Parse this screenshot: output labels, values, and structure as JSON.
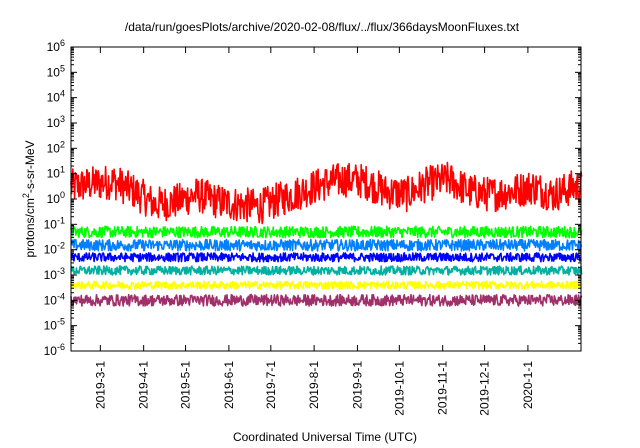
{
  "chart_data": {
    "type": "line",
    "title": "/data/run/goesPlots/archive/2020-02-08/flux/../flux/366daysMoonFluxes.txt",
    "xlabel": "Coordinated Universal Time (UTC)",
    "ylabel": {
      "base": "protons/cm",
      "sup": "2",
      "rest": "-s-sr-MeV"
    },
    "y_scale": "log",
    "ylim": [
      1e-06,
      1000000.0
    ],
    "xlim": [
      "2019-02-08",
      "2020-02-08"
    ],
    "grid": false,
    "legend": "none",
    "y_ticks": [
      {
        "base": "10",
        "exp": "-6",
        "value": 1e-06
      },
      {
        "base": "10",
        "exp": "-5",
        "value": 1e-05
      },
      {
        "base": "10",
        "exp": "-4",
        "value": 0.0001
      },
      {
        "base": "10",
        "exp": "-3",
        "value": 0.001
      },
      {
        "base": "10",
        "exp": "-2",
        "value": 0.01
      },
      {
        "base": "10",
        "exp": "-1",
        "value": 0.1
      },
      {
        "base": "10",
        "exp": "0",
        "value": 1
      },
      {
        "base": "10",
        "exp": "1",
        "value": 10
      },
      {
        "base": "10",
        "exp": "2",
        "value": 100
      },
      {
        "base": "10",
        "exp": "3",
        "value": 1000
      },
      {
        "base": "10",
        "exp": "4",
        "value": 10000
      },
      {
        "base": "10",
        "exp": "5",
        "value": 100000
      },
      {
        "base": "10",
        "exp": "6",
        "value": 1000000
      }
    ],
    "x_ticks": [
      {
        "label": "2019-3-1",
        "date": "2019-03-01"
      },
      {
        "label": "2019-4-1",
        "date": "2019-04-01"
      },
      {
        "label": "2019-5-1",
        "date": "2019-05-01"
      },
      {
        "label": "2019-6-1",
        "date": "2019-06-01"
      },
      {
        "label": "2019-7-1",
        "date": "2019-07-01"
      },
      {
        "label": "2019-8-1",
        "date": "2019-08-01"
      },
      {
        "label": "2019-9-1",
        "date": "2019-09-01"
      },
      {
        "label": "2019-10-1",
        "date": "2019-10-01"
      },
      {
        "label": "2019-11-1",
        "date": "2019-11-01"
      },
      {
        "label": "2019-12-1",
        "date": "2019-12-01"
      },
      {
        "label": "2020-1-1",
        "date": "2020-01-01"
      }
    ],
    "x": [
      "2019-02-08",
      "2019-02-23",
      "2019-03-10",
      "2019-03-25",
      "2019-04-09",
      "2019-04-24",
      "2019-05-09",
      "2019-05-24",
      "2019-06-08",
      "2019-06-23",
      "2019-07-08",
      "2019-07-23",
      "2019-08-07",
      "2019-08-22",
      "2019-09-06",
      "2019-09-21",
      "2019-10-06",
      "2019-10-21",
      "2019-11-05",
      "2019-11-20",
      "2019-12-05",
      "2019-12-20",
      "2020-01-04",
      "2020-01-19",
      "2020-02-03"
    ],
    "series": [
      {
        "color": "#ff0000",
        "values": [
          3,
          4,
          5,
          2,
          0.6,
          0.8,
          1.5,
          0.8,
          0.6,
          0.5,
          1,
          2,
          4,
          6,
          5,
          2,
          1.5,
          4,
          6,
          2,
          1.5,
          2,
          3,
          1.5,
          3
        ]
      },
      {
        "color": "#00ff00",
        "values": [
          0.05,
          0.05,
          0.05,
          0.05,
          0.05,
          0.05,
          0.05,
          0.05,
          0.05,
          0.05,
          0.05,
          0.05,
          0.05,
          0.05,
          0.05,
          0.05,
          0.05,
          0.05,
          0.05,
          0.05,
          0.05,
          0.05,
          0.05,
          0.05,
          0.05
        ]
      },
      {
        "color": "#0080ff",
        "values": [
          0.015,
          0.015,
          0.015,
          0.015,
          0.015,
          0.015,
          0.015,
          0.015,
          0.015,
          0.015,
          0.015,
          0.015,
          0.015,
          0.015,
          0.015,
          0.015,
          0.015,
          0.015,
          0.015,
          0.015,
          0.015,
          0.015,
          0.015,
          0.015,
          0.015
        ]
      },
      {
        "color": "#0000ff",
        "values": [
          0.005,
          0.005,
          0.005,
          0.005,
          0.005,
          0.005,
          0.005,
          0.005,
          0.005,
          0.005,
          0.005,
          0.005,
          0.005,
          0.005,
          0.005,
          0.005,
          0.005,
          0.005,
          0.005,
          0.005,
          0.005,
          0.005,
          0.005,
          0.005,
          0.005
        ]
      },
      {
        "color": "#00b0a0",
        "values": [
          0.0015,
          0.0015,
          0.0015,
          0.0015,
          0.0015,
          0.0015,
          0.0015,
          0.0015,
          0.0015,
          0.0015,
          0.0015,
          0.0015,
          0.0015,
          0.0015,
          0.0015,
          0.0015,
          0.0015,
          0.0015,
          0.0015,
          0.0015,
          0.0015,
          0.0015,
          0.0015,
          0.0015,
          0.0015
        ]
      },
      {
        "color": "#ffff00",
        "values": [
          0.0004,
          0.0004,
          0.0004,
          0.0004,
          0.0004,
          0.0004,
          0.0004,
          0.0004,
          0.0004,
          0.0004,
          0.0004,
          0.0004,
          0.0004,
          0.0004,
          0.0004,
          0.0004,
          0.0004,
          0.0004,
          0.0004,
          0.0004,
          0.0004,
          0.0004,
          0.0004,
          0.0004,
          0.0004
        ]
      },
      {
        "color": "#a0306a",
        "values": [
          0.0001,
          0.0001,
          0.0001,
          0.0001,
          0.0001,
          0.0001,
          0.0001,
          0.0001,
          0.0001,
          0.0001,
          0.0001,
          0.0001,
          0.0001,
          0.0001,
          0.0001,
          0.0001,
          0.0001,
          0.0001,
          0.0001,
          0.0001,
          0.0001,
          0.0001,
          0.0001,
          0.0001,
          0.0001
        ]
      }
    ],
    "noise_decades": [
      1.4,
      0.45,
      0.45,
      0.35,
      0.35,
      0.3,
      0.45
    ]
  }
}
